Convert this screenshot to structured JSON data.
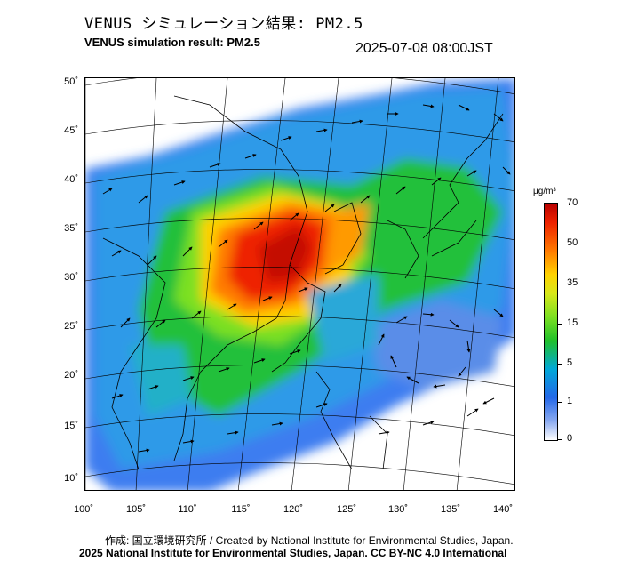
{
  "header": {
    "title_ja": "VENUS シミュレーション結果: PM2.5",
    "title_en": "VENUS simulation result: PM2.5",
    "timestamp": "2025-07-08 08:00JST"
  },
  "map": {
    "lat_labels": [
      "50˚",
      "45˚",
      "40˚",
      "35˚",
      "30˚",
      "25˚",
      "20˚",
      "15˚",
      "10˚"
    ],
    "lon_labels": [
      "100˚",
      "105˚",
      "110˚",
      "115˚",
      "120˚",
      "125˚",
      "130˚",
      "135˚",
      "140˚"
    ],
    "lon_range": [
      100,
      142
    ],
    "lat_range": [
      9,
      51
    ]
  },
  "colorbar": {
    "unit": "μg/m³",
    "labels": [
      "70",
      "50",
      "35",
      "15",
      "5",
      "1",
      "0"
    ],
    "colors": {
      "high": "#b80000",
      "orange": "#ff7a00",
      "yellow": "#ffd200",
      "green": "#20c02a",
      "cyan": "#00a8d8",
      "blue": "#2468e8",
      "low": "#ffffff"
    }
  },
  "footer": {
    "credit_ja": "作成: 国立環境研究所 / Created by National Institute for Environmental Studies, Japan.",
    "credit_en": "2025 National Institute for Environmental Studies, Japan. CC BY-NC 4.0 International"
  }
}
